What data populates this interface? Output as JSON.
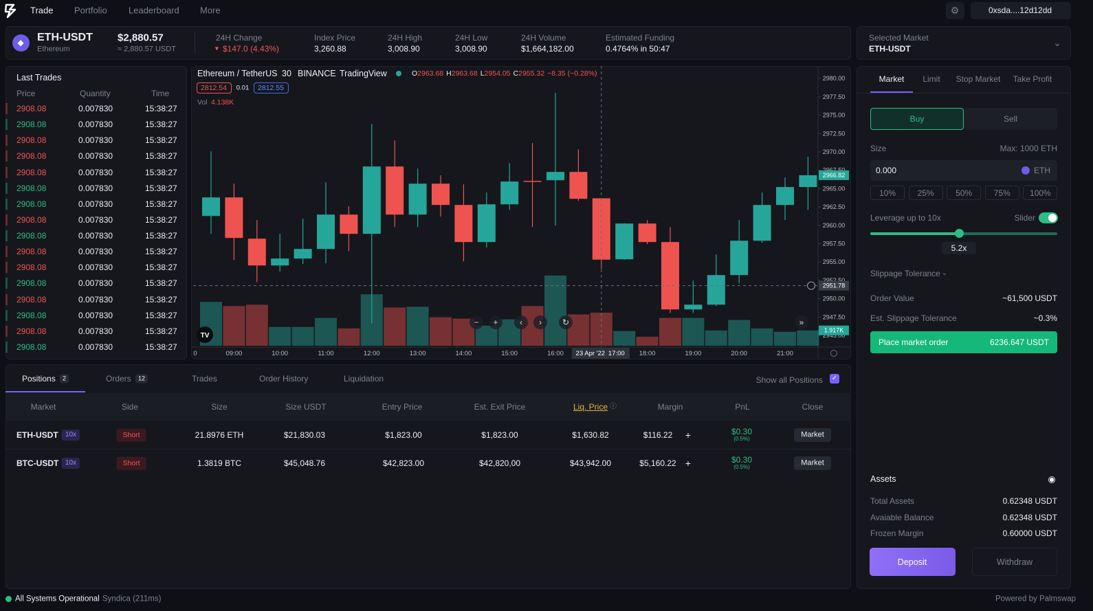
{
  "nav": {
    "items": [
      "Trade",
      "Portfolio",
      "Leaderboard",
      "More"
    ],
    "wallet": "0xsda....12d12dd"
  },
  "ticker": {
    "symbol": "ETH-USDT",
    "name": "Ethereum",
    "price": "$2,880.57",
    "price_sub": "≈ 2,880.57 USDT",
    "stats": [
      {
        "label": "24H Change",
        "value": "$147.0 (4.43%)"
      },
      {
        "label": "Index Price",
        "value": "3,260.88"
      },
      {
        "label": "24H High",
        "value": "3,008.90"
      },
      {
        "label": "24H Low",
        "value": "3,008.90"
      },
      {
        "label": "24H Volume",
        "value": "$1,664,182.00"
      },
      {
        "label": "Estimated Funding",
        "value": "0.4764% in 50:47"
      }
    ]
  },
  "selected_market": {
    "label": "Selected Market",
    "value": "ETH-USDT"
  },
  "last_trades": {
    "title": "Last Trades",
    "headers": [
      "Price",
      "Quantity",
      "Time"
    ],
    "rows": [
      [
        "2908.08",
        "0.007830",
        "15:38:27"
      ],
      [
        "2908.08",
        "0.007830",
        "15:38:27"
      ],
      [
        "2908.08",
        "0.007830",
        "15:38:27"
      ],
      [
        "2908.08",
        "0.007830",
        "15:38:27"
      ],
      [
        "2908.08",
        "0.007830",
        "15:38:27"
      ],
      [
        "2908.08",
        "0.007830",
        "15:38:27"
      ],
      [
        "2908.08",
        "0.007830",
        "15:38:27"
      ],
      [
        "2908.08",
        "0.007830",
        "15:38:27"
      ],
      [
        "2908.08",
        "0.007830",
        "15:38:27"
      ],
      [
        "2908.08",
        "0.007830",
        "15:38:27"
      ],
      [
        "2908.08",
        "0.007830",
        "15:38:27"
      ],
      [
        "2908.08",
        "0.007830",
        "15:38:27"
      ],
      [
        "2908.08",
        "0.007830",
        "15:38:27"
      ],
      [
        "2908.08",
        "0.007830",
        "15:38:27"
      ],
      [
        "2908.08",
        "0.007830",
        "15:38:27"
      ],
      [
        "2908.08",
        "0.007830",
        "15:38:27"
      ]
    ],
    "sides": [
      "sell",
      "buy",
      "sell",
      "sell",
      "sell",
      "buy",
      "buy",
      "sell",
      "buy",
      "sell",
      "sell",
      "buy",
      "sell",
      "buy",
      "sell",
      "buy"
    ]
  },
  "chart_data": {
    "type": "candlestick",
    "title": "Ethereum / TetherUS",
    "interval": "30",
    "exchange": "BINANCE",
    "source": "TradingView",
    "legend_labels": [
      "O",
      "H",
      "L",
      "C"
    ],
    "legend_change": "−8.35 (−0.28%)",
    "price_buttons": [
      "2812.54",
      "0.01",
      "2812.55"
    ],
    "volume_title": "Vol",
    "categories": [
      null,
      "09:00",
      null,
      "10:00",
      null,
      "11:00",
      null,
      "12:00",
      null,
      "13:00",
      null,
      "14:00",
      null,
      "15:00",
      null,
      "16:00",
      null,
      "17:00",
      null,
      "18:00",
      null,
      "19:00",
      null,
      "20:00",
      null,
      "21:00",
      null
    ],
    "open": [
      2961.27,
      2963.8,
      2958.18,
      2954.53,
      2955.47,
      2956.78,
      2961.46,
      2958.84,
      2968.01,
      2961.46,
      2965.67,
      2962.77,
      2957.72,
      2962.86,
      2966.05,
      2966.14,
      2967.27,
      2963.68,
      2955.37,
      2960.24,
      2957.72,
      2948.54,
      2949.19,
      2953.22,
      2957.9,
      2962.77,
      2965.21
    ],
    "high": [
      2970.07,
      2965.67,
      2960.71,
      2958.84,
      2960.9,
      2965.86,
      2962.58,
      2973.82,
      2971.57,
      2967.73,
      2966.8,
      2965.58,
      2964.46,
      2968.48,
      2971.2,
      2978.03,
      2970.36,
      2963.68,
      2960.3,
      2960.71,
      2959.78,
      2952.47,
      2956.03,
      2960.71,
      2964.46,
      2966.52,
      2969.33
    ],
    "low": [
      2958.84,
      2955.28,
      2952.28,
      2953.69,
      2954.72,
      2954.82,
      2956.5,
      2946.67,
      2959.78,
      2959.78,
      2961.18,
      2955.09,
      2956.97,
      2962.12,
      2959.78,
      2959.96,
      2963.33,
      2954.05,
      2955.3,
      2957.43,
      2948.07,
      2948.07,
      2949.0,
      2952.1,
      2957.62,
      2960.71,
      2962.12
    ],
    "close": [
      2963.8,
      2958.28,
      2954.53,
      2955.47,
      2956.78,
      2961.46,
      2958.84,
      2968.01,
      2961.46,
      2965.67,
      2962.77,
      2957.72,
      2962.86,
      2965.96,
      2965.96,
      2967.27,
      2963.61,
      2955.32,
      2960.24,
      2957.72,
      2948.54,
      2949.19,
      2953.22,
      2957.9,
      2962.77,
      2965.21,
      2966.82
    ],
    "volume": [
      5.48,
      4.96,
      5.13,
      2.35,
      2.35,
      3.48,
      2.17,
      6.43,
      4.78,
      4.87,
      3.57,
      3.39,
      2.52,
      3.3,
      4.96,
      8.78,
      3.91,
      4.138,
      1.83,
      1.13,
      3.48,
      3.48,
      1.91,
      3.22,
      2.17,
      1.74,
      1.917
    ],
    "volume_labels": [
      null,
      null,
      null,
      null,
      null,
      null,
      null,
      null,
      null,
      null,
      null,
      null,
      null,
      null,
      null,
      null,
      null,
      "4.138K",
      null,
      null,
      null,
      null,
      null,
      null,
      null,
      null,
      "1.917K"
    ],
    "up_color": "#26a69a",
    "down_color": "#ef5350",
    "ylim": [
      2943.6,
      2981.7
    ],
    "volume_lim": [
      0,
      35
    ],
    "yticks": [
      {
        "value": 2980,
        "label": "2980.00"
      },
      {
        "value": 2977.5,
        "label": "2977.50"
      },
      {
        "value": 2975,
        "label": "2975.00"
      },
      {
        "value": 2972.5,
        "label": "2972.50"
      },
      {
        "value": 2970,
        "label": "2970.00"
      },
      {
        "value": 2967.5,
        "label": "2967.50"
      },
      {
        "value": 2965,
        "label": "2965.00"
      },
      {
        "value": 2962.5,
        "label": "2962.50"
      },
      {
        "value": 2960,
        "label": "2960.00"
      },
      {
        "value": 2957.5,
        "label": "2957.50"
      },
      {
        "value": 2955,
        "label": "2955.00"
      },
      {
        "value": 2952.5,
        "label": "2952.50"
      },
      {
        "value": 2950,
        "label": "2950.00"
      },
      {
        "value": 2947.5,
        "label": "2947.50"
      },
      {
        "value": 2945,
        "label": "2945.00"
      }
    ],
    "x_edge_label": "0",
    "last_price": {
      "value": 2966.82,
      "label": "2966.82"
    },
    "crosshair": {
      "date": "23 Apr '22",
      "time": "17:00",
      "price": {
        "value": 2951.78,
        "label": "2951.78"
      }
    }
  },
  "positions": {
    "tabs": [
      {
        "label": "Positions",
        "count": "2"
      },
      {
        "label": "Orders",
        "count": "12"
      },
      {
        "label": "Trades"
      },
      {
        "label": "Order History"
      },
      {
        "label": "Liquidation"
      }
    ],
    "show_all": "Show all Positions",
    "headers": [
      "Market",
      "Side",
      "Size",
      "Size USDT",
      "Entry Price",
      "Est. Exit Price",
      "Liq. Price",
      "Margin",
      "PnL",
      "Close"
    ],
    "rows": [
      {
        "market": "ETH-USDT",
        "leverage": "10x",
        "side": "Short",
        "size": "21.8976 ETH",
        "size_usdt": "$21,830.03",
        "entry": "$1,823.00",
        "exit": "$1,823.00",
        "liq": "$1,630.82",
        "margin": "$116.22",
        "pnl": "$0.30",
        "pnl_pct": "(0.5%)",
        "close": "Market"
      },
      {
        "market": "BTC-USDT",
        "leverage": "10x",
        "side": "Short",
        "size": "1.3819 BTC",
        "size_usdt": "$45,048.76",
        "entry": "$42,823.00",
        "exit": "$42,820,00",
        "liq": "$43,942.00",
        "margin": "$5,160.22",
        "pnl": "$0.30",
        "pnl_pct": "(0.5%)",
        "close": "Market"
      }
    ]
  },
  "order": {
    "tabs": [
      "Market",
      "Limit",
      "Stop Market",
      "Take Profit"
    ],
    "buy": "Buy",
    "sell": "Sell",
    "size_label": "Size",
    "max": "Max: 1000 ETH",
    "size_value": "0.000",
    "size_unit": "ETH",
    "percents": [
      "10%",
      "25%",
      "50%",
      "75%",
      "100%"
    ],
    "leverage_label": "Leverage up to 10x",
    "slider_label": "Slider",
    "leverage_value": "5.2x",
    "slippage": "Slippage Tolerance",
    "order_value_label": "Order Value",
    "order_value": "~61,500 USDT",
    "est_slippage_label": "Est. Slippage Tolerance",
    "est_slippage": "~0.3%",
    "place_label": "Place market order",
    "place_value": "6236.647 USDT",
    "assets_title": "Assets",
    "assets": [
      [
        "Total Assets",
        "0.62348 USDT"
      ],
      [
        "Avaiable Balance",
        "0.62348 USDT"
      ],
      [
        "Frozen Margin",
        "0.60000 USDT"
      ]
    ],
    "deposit": "Deposit",
    "withdraw": "Withdraw"
  },
  "footer": {
    "status": "All Systems Operational",
    "rpc": "Syndica (211ms)",
    "powered": "Powered by Palmswap"
  }
}
